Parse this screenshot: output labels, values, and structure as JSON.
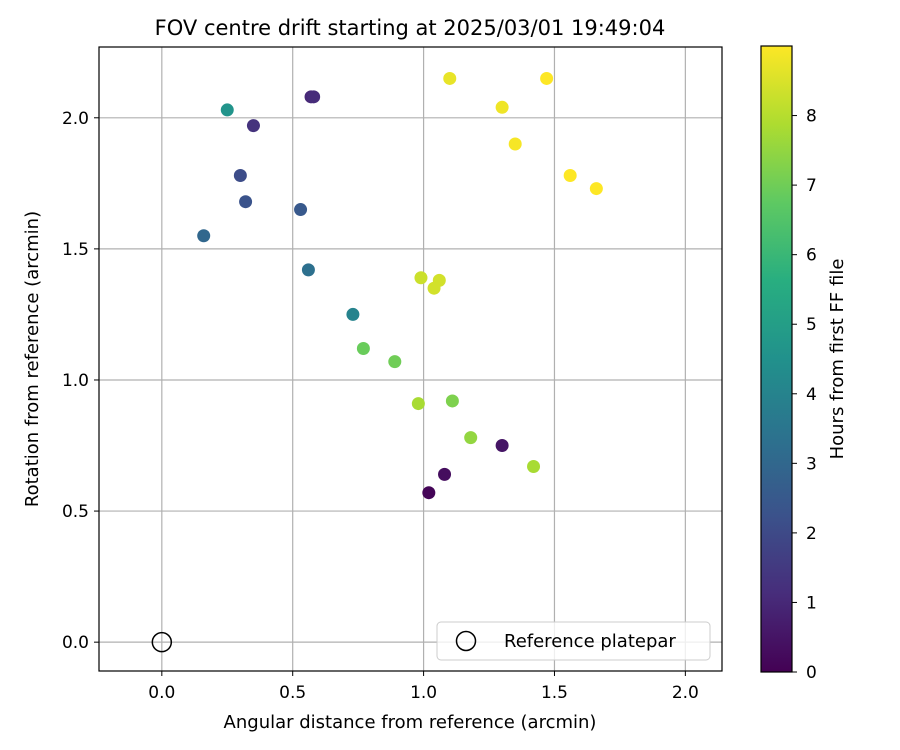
{
  "chart_data": {
    "type": "scatter",
    "title": "FOV centre drift starting at 2025/03/01 19:49:04",
    "xlabel": "Angular distance from reference (arcmin)",
    "ylabel": "Rotation from reference (arcmin)",
    "xlim": [
      -0.24,
      2.14
    ],
    "ylim": [
      -0.11,
      2.27
    ],
    "xticks": [
      0.0,
      0.5,
      1.0,
      1.5,
      2.0
    ],
    "xtick_labels": [
      "0.0",
      "0.5",
      "1.0",
      "1.5",
      "2.0"
    ],
    "yticks": [
      0.0,
      0.5,
      1.0,
      1.5,
      2.0
    ],
    "ytick_labels": [
      "0.0",
      "0.5",
      "1.0",
      "1.5",
      "2.0"
    ],
    "grid": true,
    "legend": {
      "placement": "lower-right",
      "entries": [
        "Reference platepar"
      ]
    },
    "reference_point": {
      "x": 0.0,
      "y": 0.0,
      "label": "Reference platepar",
      "marker": "open-circle"
    },
    "colormap": "viridis",
    "colorbar": {
      "label": "Hours from first FF file",
      "range": [
        0,
        9
      ],
      "ticks": [
        0,
        1,
        2,
        3,
        4,
        5,
        6,
        7,
        8
      ],
      "tick_labels": [
        "0",
        "1",
        "2",
        "3",
        "4",
        "5",
        "6",
        "7",
        "8"
      ]
    },
    "points": [
      {
        "x": 1.02,
        "y": 0.57,
        "hours": 0.1
      },
      {
        "x": 1.08,
        "y": 0.64,
        "hours": 0.3
      },
      {
        "x": 1.3,
        "y": 0.75,
        "hours": 0.5
      },
      {
        "x": 0.57,
        "y": 2.08,
        "hours": 1.0
      },
      {
        "x": 0.58,
        "y": 2.08,
        "hours": 1.1
      },
      {
        "x": 0.35,
        "y": 1.97,
        "hours": 1.3
      },
      {
        "x": 0.3,
        "y": 1.78,
        "hours": 2.1
      },
      {
        "x": 0.32,
        "y": 1.68,
        "hours": 2.3
      },
      {
        "x": 0.53,
        "y": 1.65,
        "hours": 2.5
      },
      {
        "x": 0.16,
        "y": 1.55,
        "hours": 3.0
      },
      {
        "x": 0.56,
        "y": 1.42,
        "hours": 3.3
      },
      {
        "x": 0.73,
        "y": 1.25,
        "hours": 4.0
      },
      {
        "x": 0.25,
        "y": 2.03,
        "hours": 4.6
      },
      {
        "x": 0.77,
        "y": 1.12,
        "hours": 6.9
      },
      {
        "x": 0.89,
        "y": 1.07,
        "hours": 7.0
      },
      {
        "x": 1.11,
        "y": 0.92,
        "hours": 7.2
      },
      {
        "x": 1.18,
        "y": 0.78,
        "hours": 7.5
      },
      {
        "x": 0.98,
        "y": 0.91,
        "hours": 7.8
      },
      {
        "x": 1.42,
        "y": 0.67,
        "hours": 7.8
      },
      {
        "x": 0.99,
        "y": 1.39,
        "hours": 8.3
      },
      {
        "x": 1.06,
        "y": 1.38,
        "hours": 8.4
      },
      {
        "x": 1.04,
        "y": 1.35,
        "hours": 8.4
      },
      {
        "x": 1.1,
        "y": 2.15,
        "hours": 8.7
      },
      {
        "x": 1.3,
        "y": 2.04,
        "hours": 8.8
      },
      {
        "x": 1.35,
        "y": 1.9,
        "hours": 8.9
      },
      {
        "x": 1.47,
        "y": 2.15,
        "hours": 9.0
      },
      {
        "x": 1.56,
        "y": 1.78,
        "hours": 9.0
      },
      {
        "x": 1.66,
        "y": 1.73,
        "hours": 9.0
      }
    ]
  }
}
